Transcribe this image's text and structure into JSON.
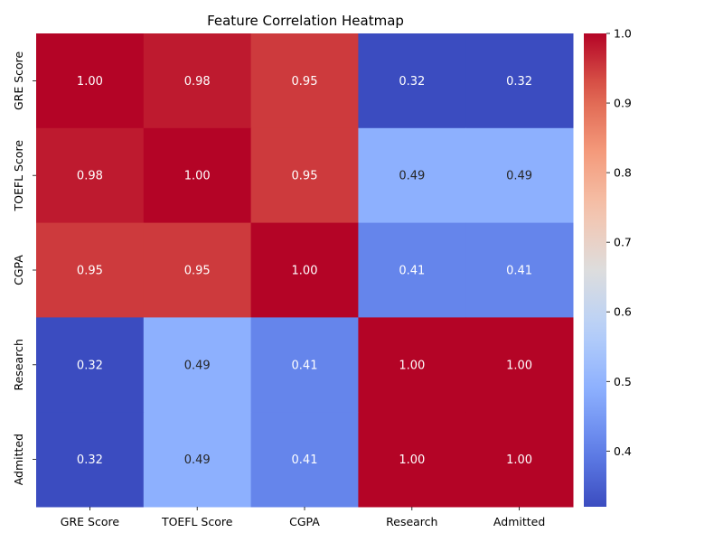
{
  "chart_data": {
    "type": "heatmap",
    "title": "Feature Correlation Heatmap",
    "x_categories": [
      "GRE Score",
      "TOEFL Score",
      "CGPA",
      "Research",
      "Admitted"
    ],
    "y_categories": [
      "GRE Score",
      "TOEFL Score",
      "CGPA",
      "Research",
      "Admitted"
    ],
    "values": [
      [
        1.0,
        0.98,
        0.95,
        0.32,
        0.32
      ],
      [
        0.98,
        1.0,
        0.95,
        0.49,
        0.49
      ],
      [
        0.95,
        0.95,
        1.0,
        0.41,
        0.41
      ],
      [
        0.32,
        0.49,
        0.41,
        1.0,
        1.0
      ],
      [
        0.32,
        0.49,
        0.41,
        1.0,
        1.0
      ]
    ],
    "value_format": "0.00",
    "colormap": "coolwarm",
    "color_range": [
      0.32,
      1.0
    ],
    "colorbar_ticks": [
      0.4,
      0.5,
      0.6,
      0.7,
      0.8,
      0.9,
      1.0
    ],
    "colorbar_tick_labels": [
      "0.4",
      "0.5",
      "0.6",
      "0.7",
      "0.8",
      "0.9",
      "1.0"
    ],
    "colors": {
      "low": "#3b4cc0",
      "mid": "#dddddd",
      "high": "#b40426"
    }
  }
}
